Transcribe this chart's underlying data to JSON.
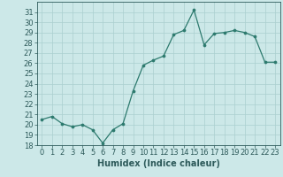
{
  "x": [
    0,
    1,
    2,
    3,
    4,
    5,
    6,
    7,
    8,
    9,
    10,
    11,
    12,
    13,
    14,
    15,
    16,
    17,
    18,
    19,
    20,
    21,
    22,
    23
  ],
  "y": [
    20.5,
    20.8,
    20.1,
    19.8,
    20.0,
    19.5,
    18.2,
    19.5,
    20.1,
    23.3,
    25.8,
    26.3,
    26.7,
    28.8,
    29.2,
    31.2,
    27.8,
    28.9,
    29.0,
    29.2,
    29.0,
    28.6,
    26.1,
    26.1
  ],
  "line_color": "#2d7a6e",
  "marker": "o",
  "marker_size": 2.2,
  "bg_color": "#cce8e8",
  "grid_color": "#aacfcf",
  "xlabel": "Humidex (Indice chaleur)",
  "ylim": [
    18,
    32
  ],
  "xlim": [
    -0.5,
    23.5
  ],
  "yticks": [
    18,
    19,
    20,
    21,
    22,
    23,
    24,
    25,
    26,
    27,
    28,
    29,
    30,
    31
  ],
  "xticks": [
    0,
    1,
    2,
    3,
    4,
    5,
    6,
    7,
    8,
    9,
    10,
    11,
    12,
    13,
    14,
    15,
    16,
    17,
    18,
    19,
    20,
    21,
    22,
    23
  ],
  "tick_color": "#2d5a5a",
  "label_fontsize": 7.0,
  "tick_fontsize": 6.0,
  "linewidth": 0.9
}
